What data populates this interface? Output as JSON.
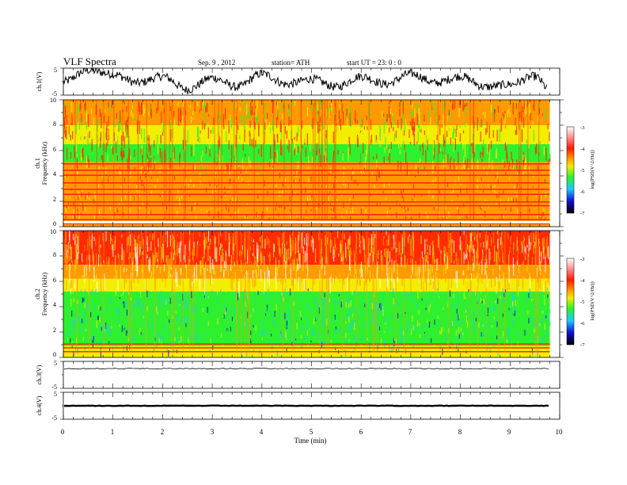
{
  "header": {
    "title": "VLF  Spectra",
    "date": "Sep. 9   , 2012",
    "station": "station= ATH",
    "start": "start  UT  =    23: 0   : 0"
  },
  "chart_data": [
    {
      "type": "line",
      "ylabel": "ch.1(V)",
      "ylim": [
        -5,
        5
      ],
      "yticks": [
        "5",
        "-5"
      ],
      "description_values": {
        "x": [
          0,
          0.5,
          1,
          1.5,
          2,
          2.5,
          3,
          3.5,
          4,
          4.5,
          5,
          5.5,
          6,
          6.5,
          7,
          7.5,
          8,
          8.5,
          9,
          9.5,
          9.8
        ],
        "y": [
          0,
          4.2,
          2.8,
          -0.5,
          2,
          -3,
          1.5,
          -2,
          3,
          -1,
          1,
          -2,
          2,
          -1,
          3,
          -0.5,
          2,
          -2,
          -1,
          2,
          -3
        ]
      }
    },
    {
      "type": "heatmap",
      "ylabel": "ch.1\nFrequency (kHz)",
      "ylabel_line1": "ch.1",
      "ylabel_line2": "Frequency (kHz)",
      "ylim": [
        0,
        10
      ],
      "yticks": [
        "0",
        "2",
        "4",
        "6",
        "8",
        "10"
      ],
      "colorbar_label": "log(PSD(V^2/Hz))",
      "colorbar_ticks": [
        "-3",
        "-4",
        "-5",
        "-6",
        "-7"
      ],
      "clim": [
        -7,
        -3
      ],
      "bands_khz": [
        0.3,
        0.6,
        1.0,
        1.7,
        2.0,
        2.6,
        3.0,
        3.5,
        4.1,
        4.5,
        5.0
      ]
    },
    {
      "type": "heatmap",
      "ylabel_line1": "ch.2",
      "ylabel_line2": "Frequency (kHz)",
      "ylim": [
        0,
        10
      ],
      "yticks": [
        "0",
        "2",
        "4",
        "6",
        "8",
        "10"
      ],
      "colorbar_label": "log(PSD(V^2/Hz))",
      "colorbar_ticks": [
        "-3",
        "-4",
        "-5",
        "-6",
        "-7"
      ],
      "clim": [
        -7,
        -3
      ]
    },
    {
      "type": "line",
      "ylabel": "ch.3(V)",
      "ylim": [
        -5,
        5
      ],
      "yticks": [
        "5",
        "-5"
      ],
      "level": 2.3
    },
    {
      "type": "line",
      "ylabel": "ch.4(V)",
      "ylim": [
        -5,
        5
      ],
      "yticks": [
        "5",
        "-5"
      ],
      "level": 0
    }
  ],
  "xaxis": {
    "label": "Time  (min)",
    "xlim": [
      0,
      10
    ],
    "data_end": 9.8,
    "ticks": [
      "0",
      "1",
      "2",
      "3",
      "4",
      "5",
      "6",
      "7",
      "8",
      "9",
      "10"
    ]
  },
  "colors": {
    "red": "#ff2a00",
    "orange": "#ff9a00",
    "yellow": "#f2ee00",
    "green": "#2ef02e",
    "cyan": "#22c8ff",
    "blue": "#1010d0",
    "navy": "#000060"
  }
}
